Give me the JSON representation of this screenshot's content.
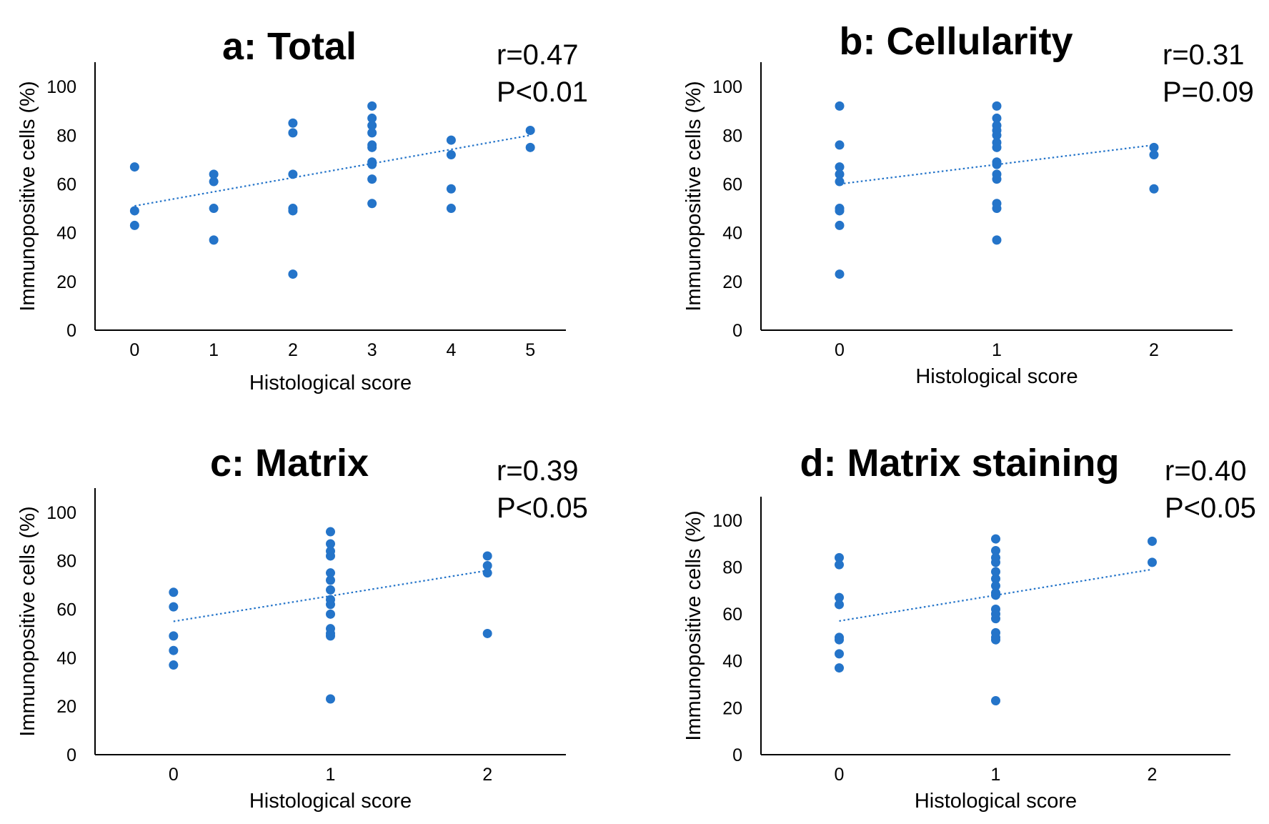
{
  "chart_data": [
    {
      "type": "scatter",
      "title": "a: Total",
      "stats": [
        "r=0.47",
        "P<0.01"
      ],
      "xlabel": "Histological score",
      "ylabel": "Immunopositive cells (%)",
      "x_ticks": [
        "0",
        "1",
        "2",
        "3",
        "4",
        "5"
      ],
      "y_ticks": [
        "0",
        "20",
        "40",
        "60",
        "80",
        "100"
      ],
      "xlim": [
        -0.5,
        5.45
      ],
      "ylim": [
        0,
        110
      ],
      "trendline": {
        "x": [
          0,
          5
        ],
        "y": [
          51,
          80
        ]
      },
      "points": [
        [
          0,
          67
        ],
        [
          0,
          49
        ],
        [
          0,
          43
        ],
        [
          1,
          64
        ],
        [
          1,
          61
        ],
        [
          1,
          50
        ],
        [
          1,
          37
        ],
        [
          2,
          85
        ],
        [
          2,
          81
        ],
        [
          2,
          64
        ],
        [
          2,
          50
        ],
        [
          2,
          49
        ],
        [
          2,
          23
        ],
        [
          3,
          92
        ],
        [
          3,
          87
        ],
        [
          3,
          84
        ],
        [
          3,
          81
        ],
        [
          3,
          76
        ],
        [
          3,
          75
        ],
        [
          3,
          69
        ],
        [
          3,
          68
        ],
        [
          3,
          62
        ],
        [
          3,
          52
        ],
        [
          4,
          78
        ],
        [
          4,
          72
        ],
        [
          4,
          58
        ],
        [
          4,
          50
        ],
        [
          5,
          82
        ],
        [
          5,
          75
        ]
      ],
      "color": "#2474c9"
    },
    {
      "type": "scatter",
      "title": "b: Cellularity",
      "stats": [
        "r=0.31",
        "P=0.09"
      ],
      "xlabel": "Histological score",
      "ylabel": "Immunopositive cells (%)",
      "x_ticks": [
        "0",
        "1",
        "2"
      ],
      "y_ticks": [
        "0",
        "20",
        "40",
        "60",
        "80",
        "100"
      ],
      "xlim": [
        -0.5,
        2.5
      ],
      "ylim": [
        0,
        110
      ],
      "trendline": {
        "x": [
          0,
          2
        ],
        "y": [
          60,
          76
        ]
      },
      "points": [
        [
          0,
          92
        ],
        [
          0,
          76
        ],
        [
          0,
          67
        ],
        [
          0,
          64
        ],
        [
          0,
          61
        ],
        [
          0,
          50
        ],
        [
          0,
          49
        ],
        [
          0,
          43
        ],
        [
          0,
          23
        ],
        [
          1,
          92
        ],
        [
          1,
          87
        ],
        [
          1,
          84
        ],
        [
          1,
          82
        ],
        [
          1,
          80
        ],
        [
          1,
          77
        ],
        [
          1,
          75
        ],
        [
          1,
          69
        ],
        [
          1,
          68
        ],
        [
          1,
          64
        ],
        [
          1,
          62
        ],
        [
          1,
          52
        ],
        [
          1,
          50
        ],
        [
          1,
          37
        ],
        [
          2,
          75
        ],
        [
          2,
          72
        ],
        [
          2,
          58
        ]
      ],
      "color": "#2474c9"
    },
    {
      "type": "scatter",
      "title": "c: Matrix",
      "stats": [
        "r=0.39",
        "P<0.05"
      ],
      "xlabel": "Histological score",
      "ylabel": "Immunopositive cells (%)",
      "x_ticks": [
        "0",
        "1",
        "2"
      ],
      "y_ticks": [
        "0",
        "20",
        "40",
        "60",
        "80",
        "100"
      ],
      "xlim": [
        -0.5,
        2.5
      ],
      "ylim": [
        0,
        110
      ],
      "trendline": {
        "x": [
          0,
          2
        ],
        "y": [
          55,
          76
        ]
      },
      "points": [
        [
          0,
          67
        ],
        [
          0,
          61
        ],
        [
          0,
          49
        ],
        [
          0,
          43
        ],
        [
          0,
          37
        ],
        [
          1,
          92
        ],
        [
          1,
          87
        ],
        [
          1,
          84
        ],
        [
          1,
          82
        ],
        [
          1,
          75
        ],
        [
          1,
          72
        ],
        [
          1,
          68
        ],
        [
          1,
          64
        ],
        [
          1,
          62
        ],
        [
          1,
          58
        ],
        [
          1,
          52
        ],
        [
          1,
          50
        ],
        [
          1,
          49
        ],
        [
          1,
          23
        ],
        [
          2,
          82
        ],
        [
          2,
          78
        ],
        [
          2,
          75
        ],
        [
          2,
          50
        ]
      ],
      "color": "#2474c9"
    },
    {
      "type": "scatter",
      "title": "d: Matrix staining",
      "stats": [
        "r=0.40",
        "P<0.05"
      ],
      "xlabel": "Histological score",
      "ylabel": "Immunopositive cells (%)",
      "x_ticks": [
        "0",
        "1",
        "2"
      ],
      "y_ticks": [
        "0",
        "20",
        "40",
        "60",
        "80",
        "100"
      ],
      "xlim": [
        -0.5,
        2.5
      ],
      "ylim": [
        0,
        110
      ],
      "trendline": {
        "x": [
          0,
          2
        ],
        "y": [
          57,
          79
        ]
      },
      "points": [
        [
          0,
          84
        ],
        [
          0,
          81
        ],
        [
          0,
          67
        ],
        [
          0,
          64
        ],
        [
          0,
          50
        ],
        [
          0,
          49
        ],
        [
          0,
          43
        ],
        [
          0,
          37
        ],
        [
          1,
          92
        ],
        [
          1,
          87
        ],
        [
          1,
          84
        ],
        [
          1,
          82
        ],
        [
          1,
          78
        ],
        [
          1,
          75
        ],
        [
          1,
          72
        ],
        [
          1,
          69
        ],
        [
          1,
          68
        ],
        [
          1,
          62
        ],
        [
          1,
          60
        ],
        [
          1,
          58
        ],
        [
          1,
          52
        ],
        [
          1,
          50
        ],
        [
          1,
          49
        ],
        [
          1,
          23
        ],
        [
          2,
          91
        ],
        [
          2,
          82
        ]
      ],
      "color": "#2474c9"
    }
  ]
}
